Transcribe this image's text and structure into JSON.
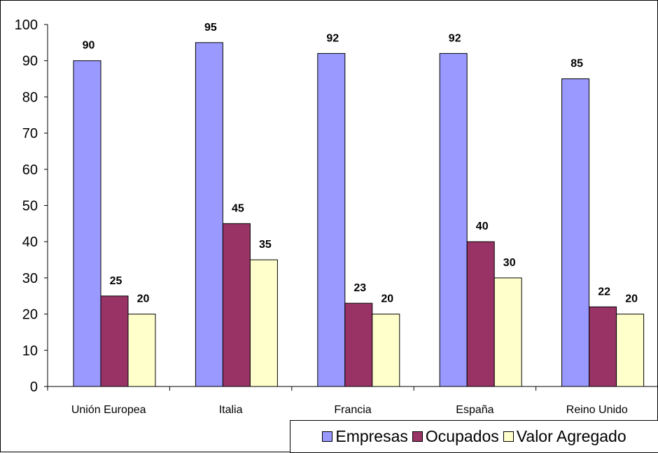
{
  "chart_data": {
    "type": "bar",
    "title": "",
    "xlabel": "",
    "ylabel": "",
    "categories": [
      "Unión Europea",
      "Italia",
      "Francia",
      "España",
      "Reino Unido"
    ],
    "series": [
      {
        "name": "Empresas",
        "color": "#9999FF",
        "values": [
          90,
          95,
          92,
          92,
          85
        ]
      },
      {
        "name": "Ocupados",
        "color": "#993366",
        "values": [
          25,
          45,
          23,
          40,
          22
        ]
      },
      {
        "name": "Valor Agregado",
        "color": "#FFFFCC",
        "values": [
          20,
          35,
          20,
          30,
          20
        ]
      }
    ],
    "ylim": [
      0,
      100
    ],
    "yticks": [
      0,
      10,
      20,
      30,
      40,
      50,
      60,
      70,
      80,
      90,
      100
    ],
    "grid": false,
    "legend_position": "bottom-right",
    "data_labels": true
  }
}
